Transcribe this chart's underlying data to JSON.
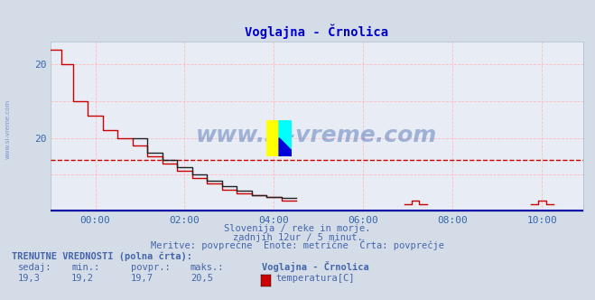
{
  "title": "Voglajna - Črnolica",
  "bg_color": "#d4dce8",
  "plot_bg_color": "#e8ecf4",
  "grid_color": "#ffbbbb",
  "avg_line_color": "#cc0000",
  "avg_line_value": 19.7,
  "temp_line_color": "#cc0000",
  "black_line_color": "#222222",
  "blue_line_color": "#0000aa",
  "title_color": "#0000cc",
  "tick_color": "#3366aa",
  "text_color": "#4466aa",
  "watermark": "www.si-vreme.com",
  "watermark_color": "#5577bb",
  "subtitle1": "Slovenija / reke in morje.",
  "subtitle2": "zadnjih 12ur / 5 minut.",
  "subtitle3": "Meritve: povprečne  Enote: metrične  Črta: povprečje",
  "footer_bold": "TRENUTNE VREDNOSTI (polna črta):",
  "footer_legend": "temperatura[C]",
  "ylim_min": 19.0,
  "ylim_max": 21.3,
  "xlim_min": 0,
  "xlim_max": 143
}
